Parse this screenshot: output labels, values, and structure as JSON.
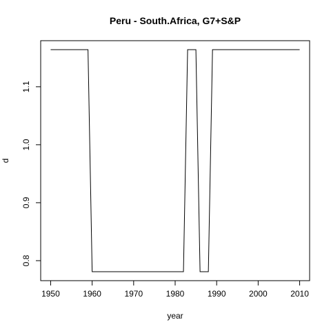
{
  "chart_data": {
    "type": "line",
    "title": "Peru - South.Africa, G7+S&P",
    "xlabel": "year",
    "ylabel": "d",
    "xlim": [
      1947.6,
      2012.4
    ],
    "ylim": [
      0.7655,
      1.1795
    ],
    "x_ticks": [
      1950,
      1960,
      1970,
      1980,
      1990,
      2000,
      2010
    ],
    "y_ticks": [
      0.8,
      0.9,
      1.0,
      1.1
    ],
    "x_tick_labels": [
      "1950",
      "1960",
      "1970",
      "1980",
      "1990",
      "2000",
      "2010"
    ],
    "y_tick_labels": [
      "0.8",
      "0.9",
      "1.0",
      "1.1"
    ],
    "grid": false,
    "legend": "none",
    "line_color": "#000000",
    "series": [
      {
        "x": [
          1950,
          1959,
          1960,
          1982,
          1983,
          1985,
          1986,
          1988,
          1989,
          2010
        ],
        "values": [
          1.164,
          1.164,
          0.781,
          0.781,
          1.164,
          1.164,
          0.781,
          0.781,
          1.164,
          1.164
        ]
      }
    ]
  }
}
